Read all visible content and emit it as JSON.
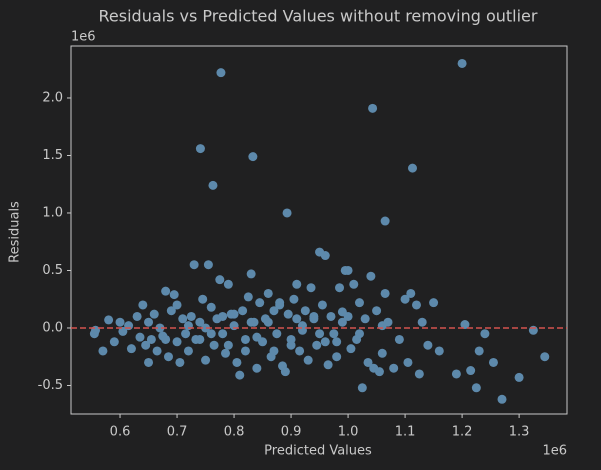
{
  "chart_data": {
    "type": "scatter",
    "title": "Residuals vs Predicted Values without removing outlier",
    "x_label": "Predicted Values",
    "y_label": "Residuals",
    "x_offset_label": "1e6",
    "y_offset_label": "1e6",
    "color": "#5d89ab",
    "hline": 0,
    "hline_color": "#d4524f",
    "xlim": [
      0.514,
      1.384
    ],
    "xticks": [
      0.6,
      0.7,
      0.8,
      0.9,
      {
        "value": 1.0,
        "label": "1.0"
      },
      1.1,
      1.2,
      1.3
    ],
    "ylim": [
      -0.748,
      2.452
    ],
    "yticks": [
      -0.5,
      {
        "value": 0,
        "label": "0.0"
      },
      0.5,
      {
        "value": 1.0,
        "label": "1.0"
      },
      1.5,
      {
        "value": 2.0,
        "label": "2.0"
      }
    ],
    "x": [
      0.777,
      1.2,
      0.741,
      0.833,
      1.043,
      0.763,
      1.113,
      0.893,
      1.065,
      0.555,
      0.557,
      0.57,
      0.58,
      0.59,
      0.6,
      0.605,
      0.615,
      0.62,
      0.63,
      0.635,
      0.64,
      0.645,
      0.65,
      0.655,
      0.66,
      0.665,
      0.67,
      0.675,
      0.68,
      0.685,
      0.69,
      0.695,
      0.7,
      0.705,
      0.71,
      0.715,
      0.72,
      0.725,
      0.73,
      0.733,
      0.74,
      0.745,
      0.75,
      0.755,
      0.76,
      0.765,
      0.77,
      0.775,
      0.78,
      0.785,
      0.79,
      0.795,
      0.8,
      0.805,
      0.81,
      0.815,
      0.82,
      0.825,
      0.83,
      0.835,
      0.84,
      0.845,
      0.85,
      0.855,
      0.86,
      0.865,
      0.87,
      0.875,
      0.88,
      0.885,
      0.89,
      0.895,
      0.9,
      0.905,
      0.91,
      0.915,
      0.92,
      0.925,
      0.93,
      0.935,
      0.94,
      0.945,
      0.95,
      0.955,
      0.96,
      0.965,
      0.97,
      0.975,
      0.98,
      0.985,
      0.99,
      0.995,
      1.0,
      1.005,
      1.01,
      1.015,
      1.02,
      1.025,
      1.03,
      1.035,
      1.04,
      1.045,
      1.05,
      1.055,
      1.06,
      1.065,
      1.07,
      1.08,
      1.09,
      1.1,
      1.105,
      1.11,
      1.12,
      1.125,
      1.13,
      1.14,
      1.15,
      1.16,
      1.19,
      1.205,
      1.215,
      1.225,
      1.23,
      1.24,
      1.255,
      1.27,
      1.3,
      1.325,
      1.345,
      0.65,
      0.7,
      0.74,
      0.78,
      0.82,
      0.86,
      0.9,
      0.94,
      0.98,
      1.02,
      1.06,
      0.68,
      0.72,
      0.76,
      0.8,
      0.84,
      0.88,
      0.92,
      0.96,
      1.0,
      0.75,
      0.79,
      0.83,
      0.87,
      0.91,
      0.95,
      0.99
    ],
    "y": [
      2.22,
      2.3,
      1.56,
      1.49,
      1.91,
      1.24,
      1.39,
      1.0,
      0.93,
      -0.05,
      -0.02,
      -0.2,
      0.07,
      -0.12,
      0.05,
      -0.03,
      0.02,
      -0.18,
      0.1,
      -0.08,
      0.2,
      -0.15,
      0.05,
      -0.1,
      0.12,
      -0.2,
      0.0,
      -0.07,
      0.32,
      -0.25,
      0.15,
      0.29,
      -0.12,
      -0.3,
      0.08,
      -0.05,
      -0.2,
      0.1,
      0.55,
      -0.1,
      0.05,
      0.25,
      -0.28,
      0.55,
      0.18,
      -0.15,
      0.08,
      0.42,
      -0.05,
      -0.22,
      0.38,
      0.12,
      0.02,
      -0.3,
      -0.41,
      0.15,
      -0.1,
      0.27,
      0.47,
      0.05,
      -0.35,
      0.22,
      -0.12,
      0.08,
      0.3,
      -0.25,
      0.15,
      -0.05,
      0.22,
      -0.33,
      -0.38,
      0.12,
      -0.1,
      0.25,
      0.38,
      -0.2,
      0.02,
      0.15,
      -0.28,
      0.35,
      0.08,
      -0.15,
      0.66,
      0.2,
      0.63,
      -0.32,
      0.1,
      -0.05,
      -0.25,
      0.35,
      0.05,
      0.5,
      0.5,
      -0.18,
      0.38,
      -0.1,
      0.22,
      -0.52,
      0.08,
      -0.3,
      0.45,
      -0.35,
      0.15,
      -0.38,
      -0.22,
      0.3,
      0.05,
      -0.35,
      -0.1,
      0.25,
      -0.3,
      0.3,
      0.2,
      -0.4,
      0.05,
      -0.15,
      0.22,
      -0.2,
      -0.4,
      0.03,
      -0.37,
      -0.52,
      -0.2,
      -0.05,
      -0.3,
      -0.62,
      -0.43,
      -0.02,
      -0.25,
      -0.3,
      0.2,
      -0.1,
      0.1,
      -0.2,
      0.05,
      -0.15,
      0.1,
      -0.12,
      -0.05,
      0.02,
      -0.1,
      0.02,
      -0.05,
      0.12,
      -0.08,
      0.2,
      -0.02,
      -0.12,
      0.1,
      0.0,
      -0.15,
      0.05,
      -0.2,
      0.08,
      -0.05,
      0.14
    ]
  }
}
